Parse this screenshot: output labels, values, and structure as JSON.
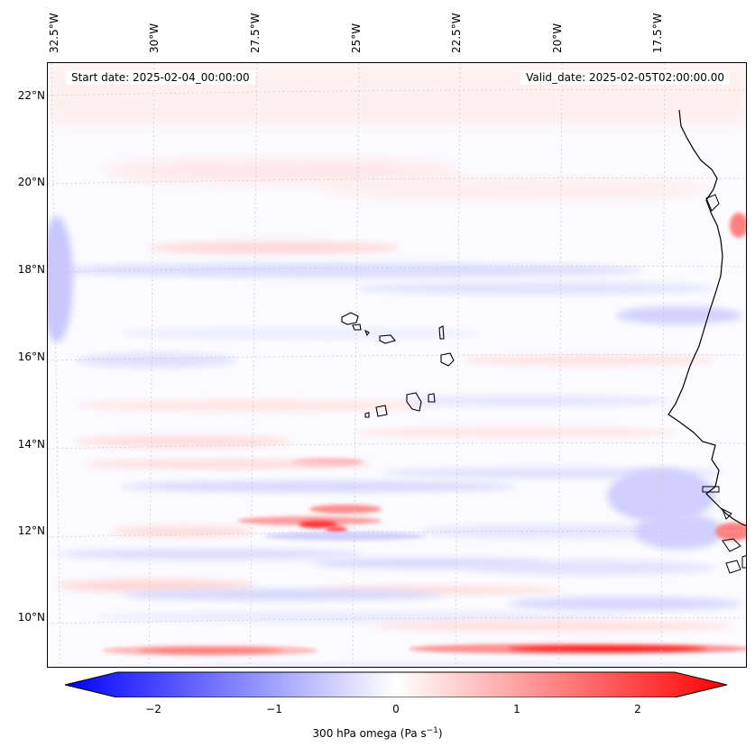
{
  "map": {
    "start_label": "Start date: 2025-02-04_00:00:00",
    "valid_label": "Valid_date: 2025-02-05T02:00:00.00",
    "lon_labels": [
      "32.5°W",
      "30°W",
      "27.5°W",
      "25°W",
      "22.5°W",
      "20°W",
      "17.5°W"
    ],
    "lat_labels": [
      "22°N",
      "20°N",
      "18°N",
      "16°N",
      "14°N",
      "12°N",
      "10°N"
    ],
    "colorbar": {
      "label_main": "300 hPa omega (Pa s",
      "label_sup": "−1",
      "label_end": ")",
      "ticks": [
        "−2",
        "−1",
        "0",
        "1",
        "2"
      ],
      "min": -2.5,
      "max": 2.5,
      "cmap_low": "#0000ff",
      "cmap_mid": "#ffffff",
      "cmap_high": "#ff0000"
    }
  }
}
